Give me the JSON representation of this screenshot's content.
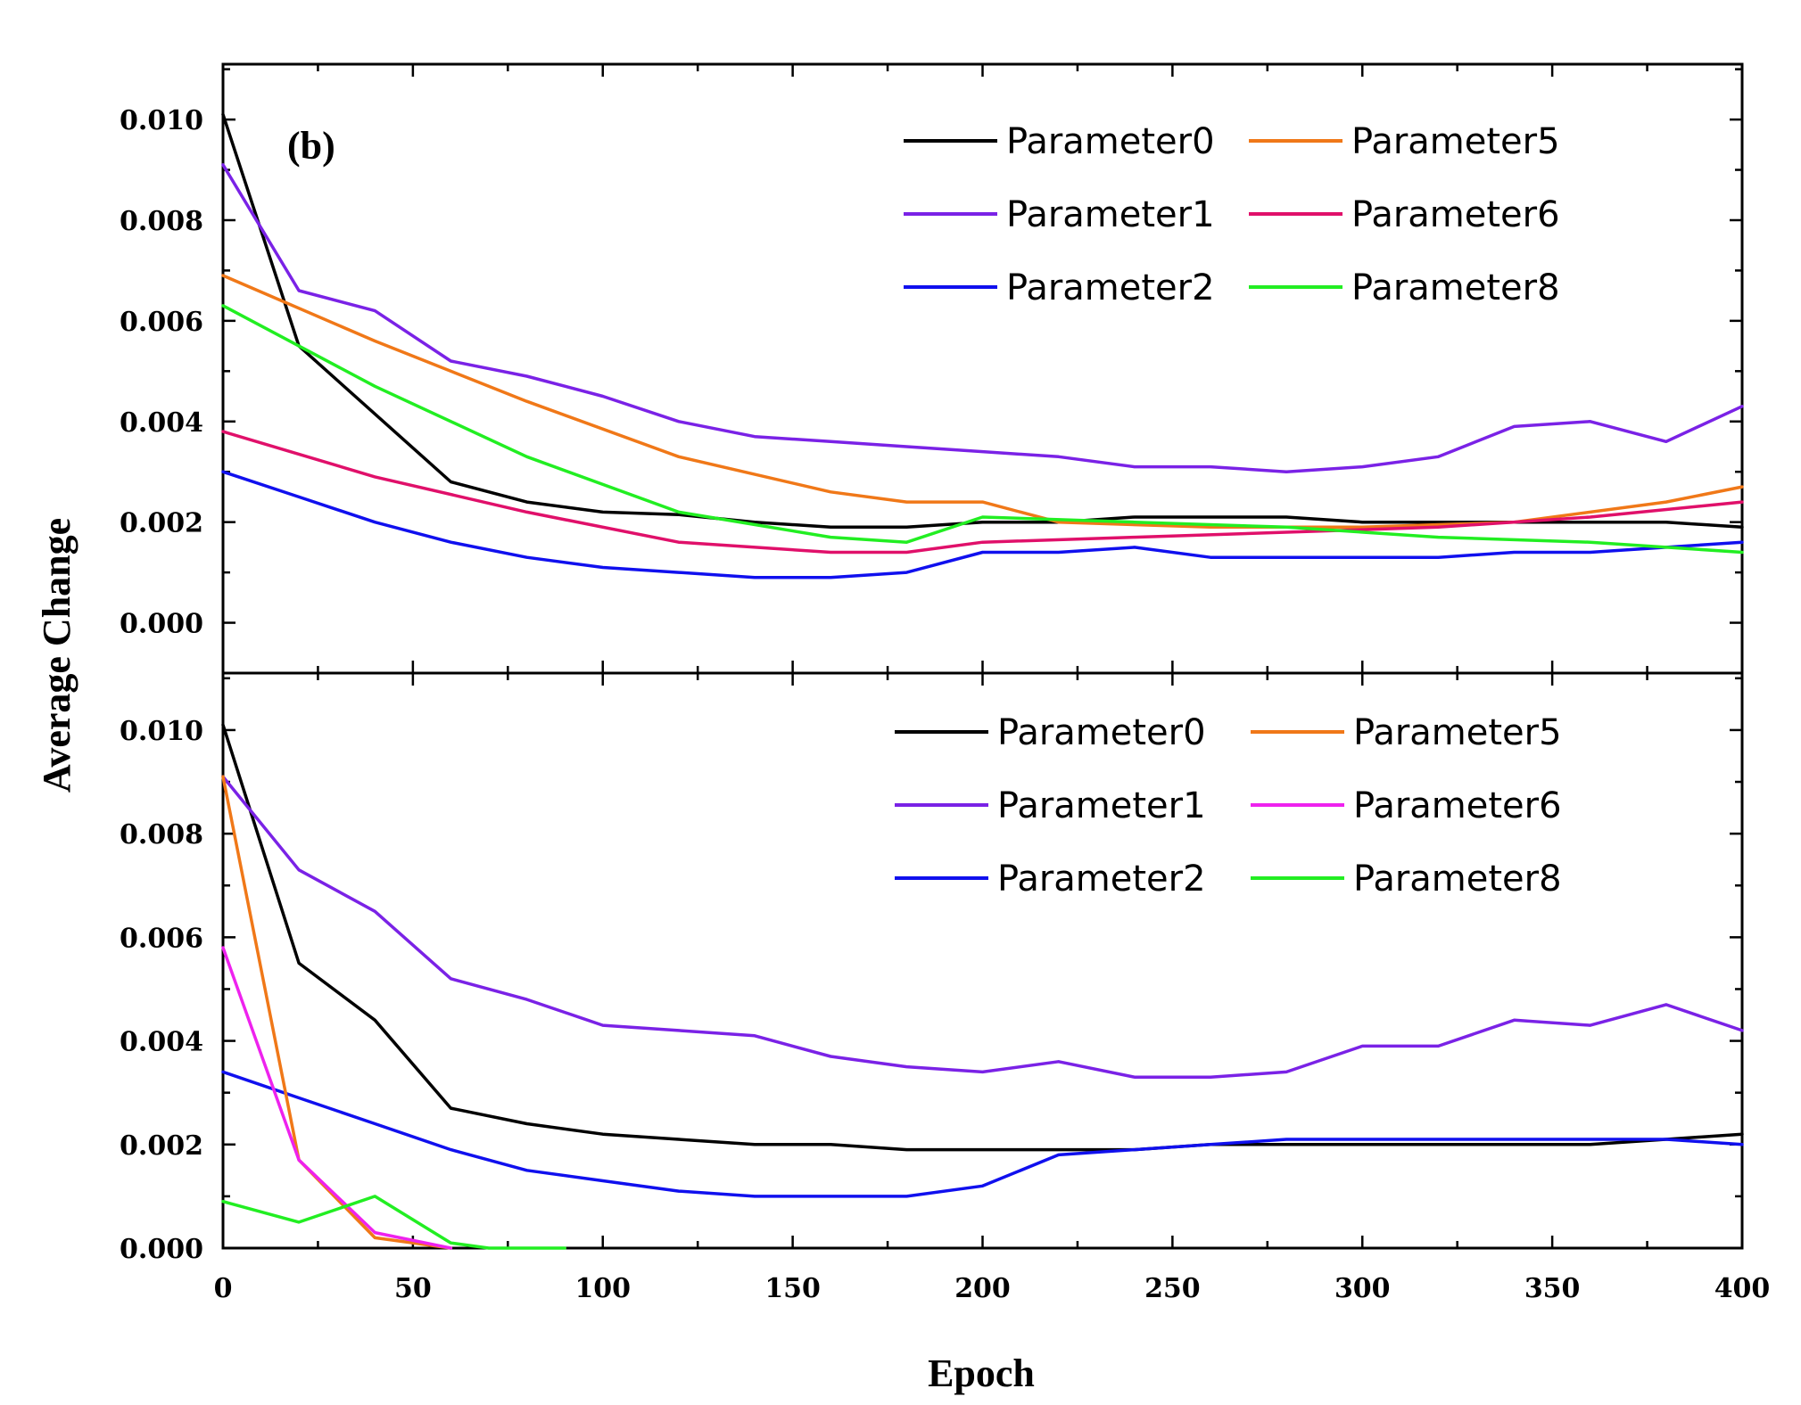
{
  "chart_data": [
    {
      "type": "line",
      "panel": "top",
      "panel_label": "(b)",
      "xlim": [
        0,
        400
      ],
      "ylim": [
        -0.001,
        0.0111
      ],
      "xticks": [
        0,
        50,
        100,
        150,
        200,
        250,
        300,
        350,
        400
      ],
      "yticks": [
        0.0,
        0.002,
        0.004,
        0.006,
        0.008,
        0.01
      ],
      "ytick_labels": [
        "0.000",
        "0.002",
        "0.004",
        "0.006",
        "0.008",
        "0.010"
      ],
      "legend": {
        "placement": "top-right",
        "columns": 2
      },
      "series": [
        {
          "name": "Parameter0",
          "color": "#000000",
          "x": [
            0,
            20,
            60,
            80,
            100,
            120,
            140,
            160,
            180,
            200,
            220,
            240,
            260,
            280,
            300,
            320,
            340,
            360,
            380,
            400
          ],
          "y": [
            0.0101,
            0.0055,
            0.0028,
            0.0024,
            0.0022,
            0.00215,
            0.002,
            0.0019,
            0.0019,
            0.002,
            0.002,
            0.0021,
            0.0021,
            0.0021,
            0.002,
            0.002,
            0.002,
            0.002,
            0.002,
            0.0019
          ]
        },
        {
          "name": "Parameter1",
          "color": "#7a22e6",
          "x": [
            0,
            20,
            40,
            60,
            80,
            100,
            120,
            140,
            160,
            180,
            200,
            220,
            240,
            260,
            280,
            300,
            320,
            340,
            360,
            380,
            400
          ],
          "y": [
            0.0091,
            0.0066,
            0.0062,
            0.0052,
            0.0049,
            0.0045,
            0.004,
            0.0037,
            0.0036,
            0.0035,
            0.0034,
            0.0033,
            0.0031,
            0.0031,
            0.003,
            0.0031,
            0.0033,
            0.0039,
            0.004,
            0.0036,
            0.0043
          ]
        },
        {
          "name": "Parameter2",
          "color": "#1010ee",
          "x": [
            0,
            20,
            40,
            60,
            80,
            100,
            120,
            140,
            160,
            180,
            200,
            220,
            240,
            260,
            280,
            300,
            320,
            340,
            360,
            380,
            400
          ],
          "y": [
            0.003,
            0.0025,
            0.002,
            0.0016,
            0.0013,
            0.0011,
            0.001,
            0.0009,
            0.0009,
            0.001,
            0.0014,
            0.0014,
            0.0015,
            0.0013,
            0.0013,
            0.0013,
            0.0013,
            0.0014,
            0.0014,
            0.0015,
            0.0016
          ]
        },
        {
          "name": "Parameter5",
          "color": "#f07818",
          "x": [
            0,
            40,
            80,
            120,
            160,
            180,
            200,
            220,
            260,
            300,
            340,
            380,
            400
          ],
          "y": [
            0.0069,
            0.0056,
            0.0044,
            0.0033,
            0.0026,
            0.0024,
            0.0024,
            0.002,
            0.0019,
            0.0019,
            0.002,
            0.0024,
            0.0027
          ]
        },
        {
          "name": "Parameter6",
          "color": "#e0106a",
          "x": [
            0,
            40,
            80,
            120,
            160,
            180,
            200,
            240,
            280,
            320,
            360,
            400
          ],
          "y": [
            0.0038,
            0.0029,
            0.0022,
            0.0016,
            0.0014,
            0.0014,
            0.0016,
            0.0017,
            0.0018,
            0.0019,
            0.0021,
            0.0024
          ]
        },
        {
          "name": "Parameter8",
          "color": "#22ee22",
          "x": [
            0,
            40,
            80,
            120,
            160,
            180,
            200,
            240,
            280,
            320,
            360,
            400
          ],
          "y": [
            0.0063,
            0.0047,
            0.0033,
            0.0022,
            0.0017,
            0.0016,
            0.0021,
            0.002,
            0.0019,
            0.0017,
            0.0016,
            0.0014
          ]
        }
      ]
    },
    {
      "type": "line",
      "panel": "bottom",
      "xlim": [
        0,
        400
      ],
      "ylim": [
        0.0,
        0.0111
      ],
      "xticks": [
        0,
        50,
        100,
        150,
        200,
        250,
        300,
        350,
        400
      ],
      "yticks": [
        0.0,
        0.002,
        0.004,
        0.006,
        0.008,
        0.01
      ],
      "ytick_labels": [
        "0.000",
        "0.002",
        "0.004",
        "0.006",
        "0.008",
        "0.010"
      ],
      "legend": {
        "placement": "top-right",
        "columns": 2
      },
      "series": [
        {
          "name": "Parameter0",
          "color": "#000000",
          "x": [
            0,
            20,
            40,
            60,
            80,
            100,
            120,
            140,
            160,
            180,
            200,
            220,
            240,
            260,
            280,
            300,
            320,
            340,
            360,
            380,
            400
          ],
          "y": [
            0.0101,
            0.0055,
            0.0044,
            0.0027,
            0.0024,
            0.0022,
            0.0021,
            0.002,
            0.002,
            0.0019,
            0.0019,
            0.0019,
            0.0019,
            0.002,
            0.002,
            0.002,
            0.002,
            0.002,
            0.002,
            0.0021,
            0.0022
          ]
        },
        {
          "name": "Parameter1",
          "color": "#7a22e6",
          "x": [
            0,
            20,
            40,
            60,
            80,
            100,
            120,
            140,
            160,
            180,
            200,
            220,
            240,
            260,
            280,
            300,
            320,
            340,
            360,
            380,
            400
          ],
          "y": [
            0.0091,
            0.0073,
            0.0065,
            0.0052,
            0.0048,
            0.0043,
            0.0042,
            0.0041,
            0.0037,
            0.0035,
            0.0034,
            0.0036,
            0.0033,
            0.0033,
            0.0034,
            0.0039,
            0.0039,
            0.0044,
            0.0043,
            0.0047,
            0.0042
          ]
        },
        {
          "name": "Parameter2",
          "color": "#1010ee",
          "x": [
            0,
            20,
            40,
            60,
            80,
            100,
            120,
            140,
            160,
            180,
            200,
            220,
            240,
            260,
            280,
            300,
            320,
            340,
            360,
            380,
            400
          ],
          "y": [
            0.0034,
            0.0029,
            0.0024,
            0.0019,
            0.0015,
            0.0013,
            0.0011,
            0.001,
            0.001,
            0.001,
            0.0012,
            0.0018,
            0.0019,
            0.002,
            0.0021,
            0.0021,
            0.0021,
            0.0021,
            0.0021,
            0.0021,
            0.002
          ]
        },
        {
          "name": "Parameter5",
          "color": "#f07818",
          "x": [
            0,
            20,
            40,
            60
          ],
          "y": [
            0.0091,
            0.0017,
            0.0002,
            0.0
          ]
        },
        {
          "name": "Parameter6",
          "color": "#ee22ee",
          "x": [
            0,
            20,
            40,
            60
          ],
          "y": [
            0.0058,
            0.0017,
            0.0003,
            0.0
          ]
        },
        {
          "name": "Parameter8",
          "color": "#22ee22",
          "x": [
            0,
            20,
            40,
            60,
            70,
            90
          ],
          "y": [
            0.0009,
            0.0005,
            0.001,
            0.0001,
            0.0,
            0.0
          ]
        }
      ]
    }
  ],
  "axes": {
    "xlabel": "Epoch",
    "ylabel": "Average Change"
  }
}
